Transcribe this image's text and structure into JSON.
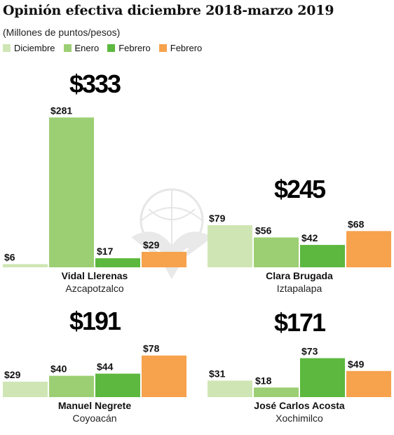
{
  "header": {
    "title": "Opinión efectiva diciembre 2018-marzo 2019",
    "subtitle": "(Millones de puntos/pesos)"
  },
  "legend": [
    {
      "label": "Diciembre",
      "color": "#cfe6b4"
    },
    {
      "label": "Enero",
      "color": "#9ccf74"
    },
    {
      "label": "Febrero",
      "color": "#5cb83e"
    },
    {
      "label": "Febrero",
      "color": "#f7a24d"
    }
  ],
  "chart_data": [
    {
      "type": "bar",
      "title": "Vidal Llerenas",
      "subtitle": "Azcapotzalco",
      "total": "$333",
      "categories": [
        "Diciembre",
        "Enero",
        "Febrero",
        "Febrero"
      ],
      "values": [
        6,
        281,
        17,
        29
      ],
      "value_labels": [
        "$6",
        "$281",
        "$17",
        "$29"
      ],
      "colors": [
        "#cfe6b4",
        "#9ccf74",
        "#5cb83e",
        "#f7a24d"
      ]
    },
    {
      "type": "bar",
      "title": "Clara Brugada",
      "subtitle": "Iztapalapa",
      "total": "$245",
      "categories": [
        "Diciembre",
        "Enero",
        "Febrero",
        "Febrero"
      ],
      "values": [
        79,
        56,
        42,
        68
      ],
      "value_labels": [
        "$79",
        "$56",
        "$42",
        "$68"
      ],
      "colors": [
        "#cfe6b4",
        "#9ccf74",
        "#5cb83e",
        "#f7a24d"
      ]
    },
    {
      "type": "bar",
      "title": "Manuel Negrete",
      "subtitle": "Coyoacán",
      "total": "$191",
      "categories": [
        "Diciembre",
        "Enero",
        "Febrero",
        "Febrero"
      ],
      "values": [
        29,
        40,
        44,
        78
      ],
      "value_labels": [
        "$29",
        "$40",
        "$44",
        "$78"
      ],
      "colors": [
        "#cfe6b4",
        "#9ccf74",
        "#5cb83e",
        "#f7a24d"
      ]
    },
    {
      "type": "bar",
      "title": "José Carlos Acosta",
      "subtitle": "Xochimilco",
      "total": "$171",
      "categories": [
        "Diciembre",
        "Enero",
        "Febrero",
        "Febrero"
      ],
      "values": [
        31,
        18,
        73,
        49
      ],
      "value_labels": [
        "$31",
        "$18",
        "$73",
        "$49"
      ],
      "colors": [
        "#cfe6b4",
        "#9ccf74",
        "#5cb83e",
        "#f7a24d"
      ]
    }
  ]
}
